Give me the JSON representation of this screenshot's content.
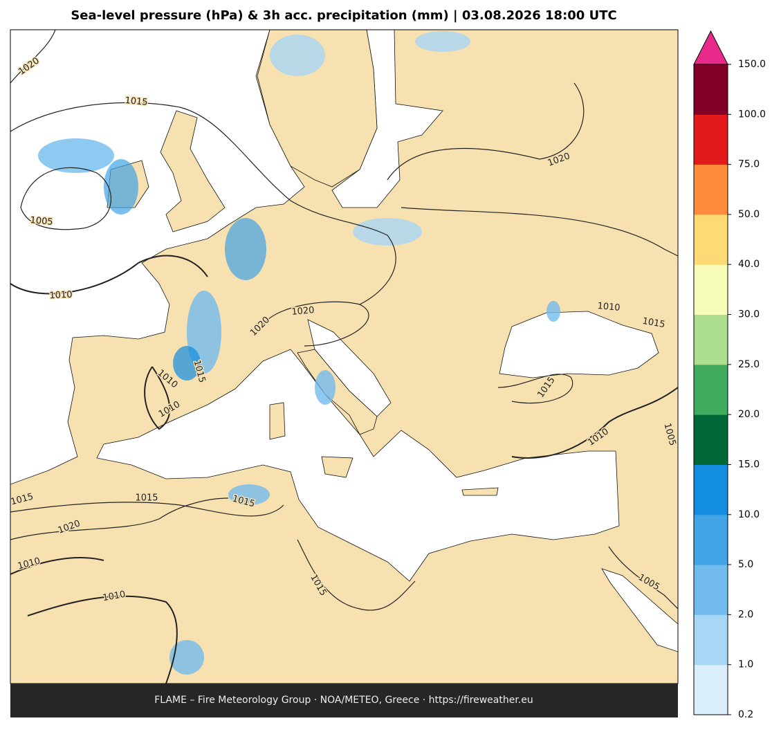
{
  "title": "Sea-level pressure (hPa) & 3h acc. precipitation (mm)  |  03.08.2026 18:00 UTC",
  "footer": "FLAME – Fire Meteorology Group · NOA/METEO, Greece · https://fireweather.eu",
  "colorbar": {
    "labels": [
      "0.2",
      "1.0",
      "2.0",
      "5.0",
      "10.0",
      "15.0",
      "20.0",
      "25.0",
      "30.0",
      "40.0",
      "50.0",
      "75.0",
      "100.0",
      "150.0"
    ],
    "colors": [
      "#dbeefb",
      "#a8d6f5",
      "#72bced",
      "#42a3e6",
      "#138de0",
      "#006837",
      "#41ab5d",
      "#addd8e",
      "#f7fcb9",
      "#fed976",
      "#fd8d3c",
      "#e31a1c",
      "#800026"
    ],
    "extend_color": "#e7298a"
  },
  "contour_labels": [
    "1020",
    "1015",
    "1005",
    "1010",
    "1020",
    "1010",
    "1015",
    "1010",
    "1015",
    "1010",
    "1020",
    "1020",
    "1015",
    "1010",
    "1005",
    "1015",
    "1015",
    "1015",
    "1020",
    "1010",
    "1010",
    "1015",
    "1005"
  ]
}
